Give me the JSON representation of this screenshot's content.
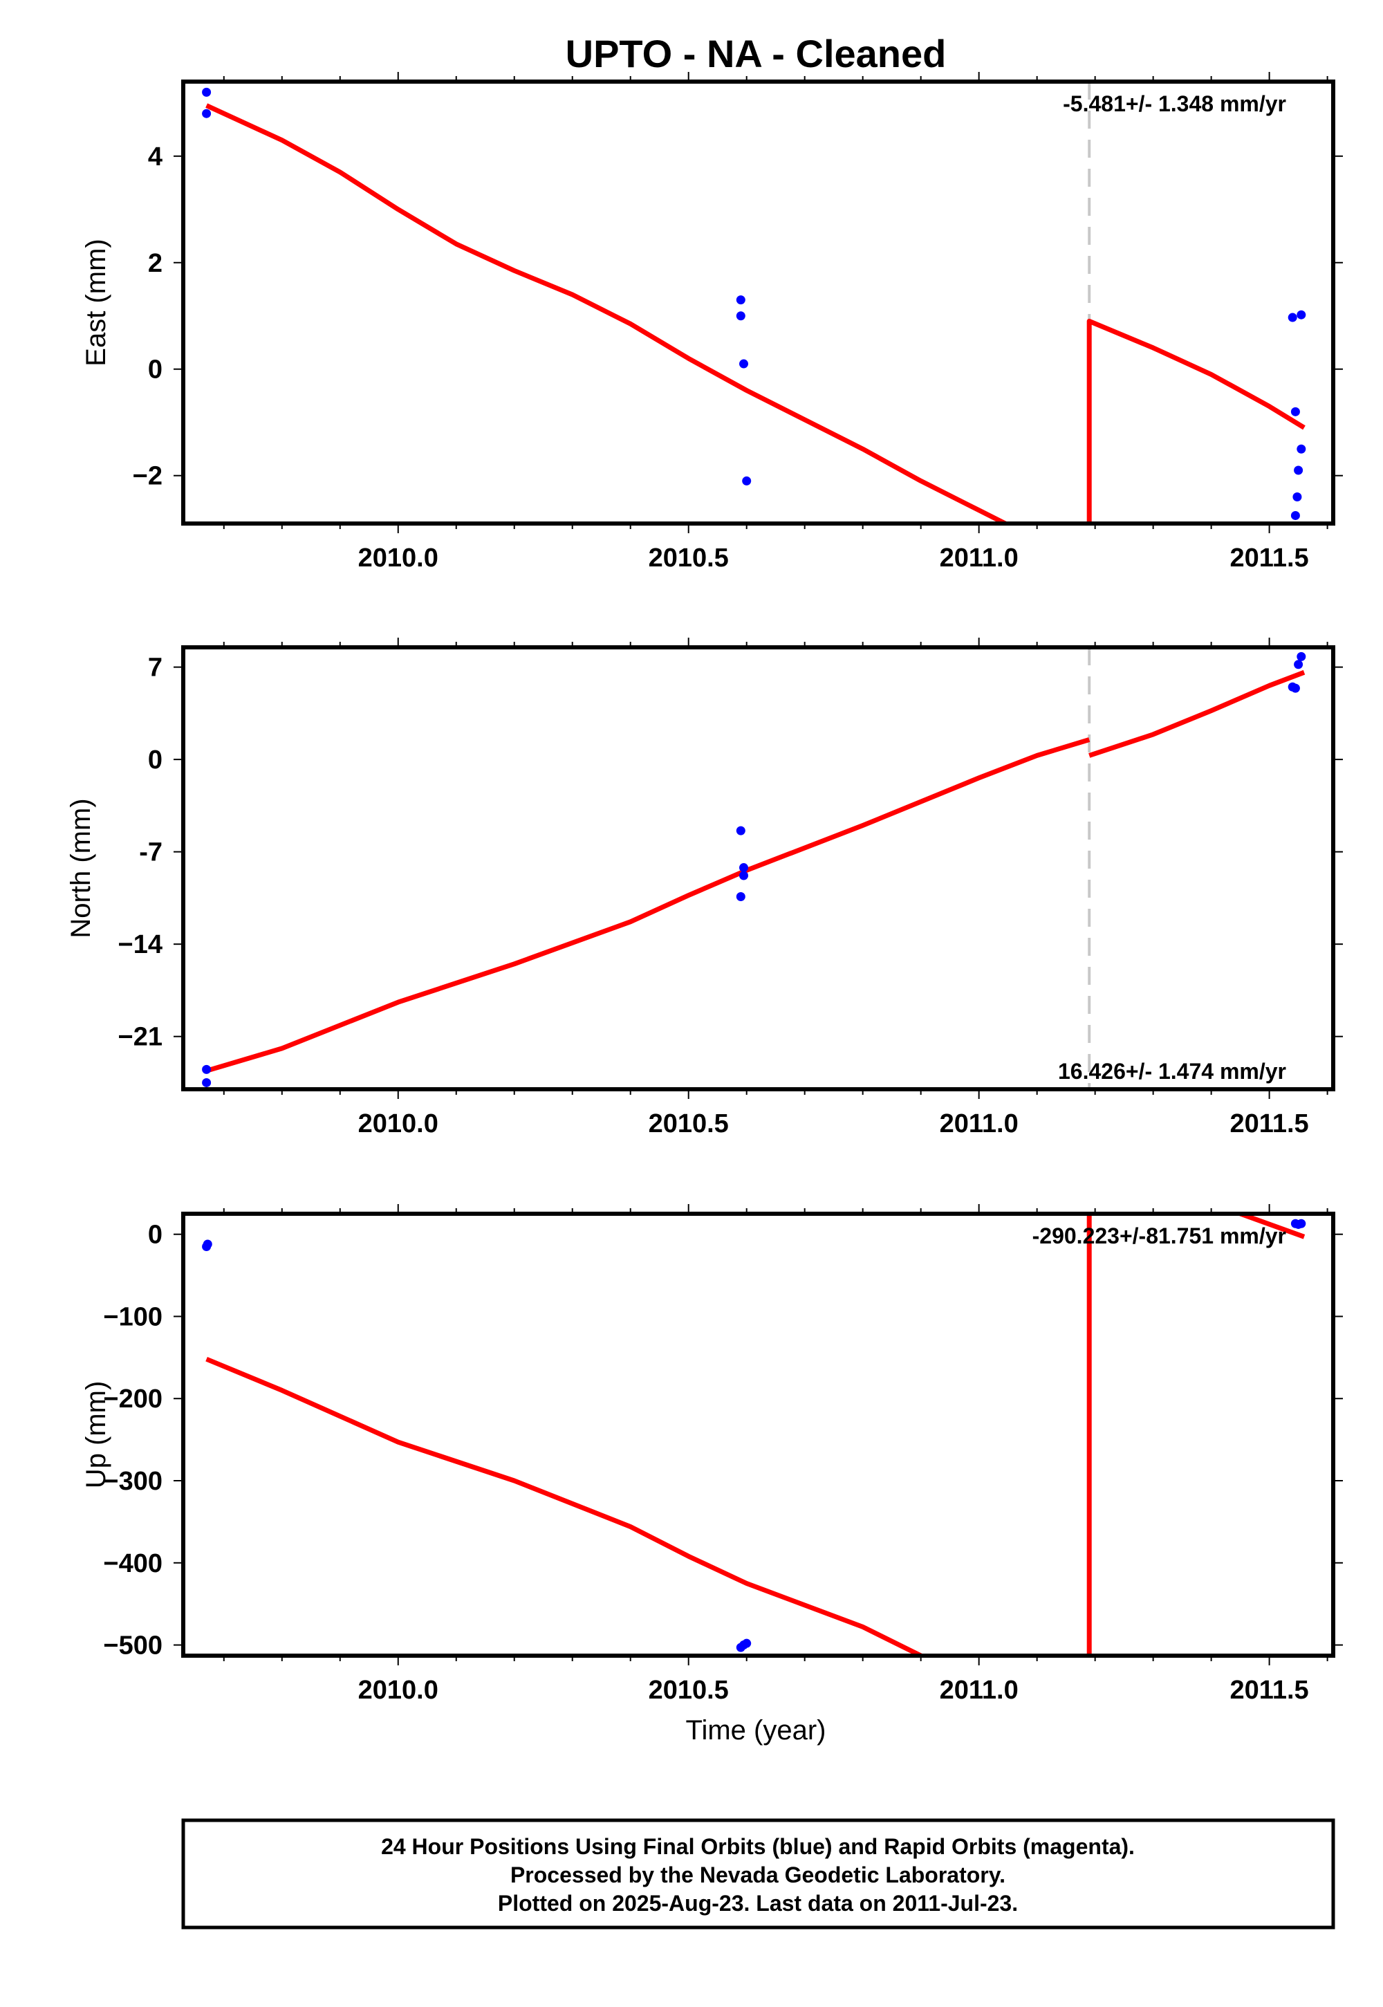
{
  "title": "UPTO  - NA - Cleaned",
  "colors": {
    "fit": "#ff0000",
    "final_points": "#0000ff",
    "break_line": "#c8c8c8",
    "frame": "#000000"
  },
  "xlabel": "Time (year)",
  "caption": {
    "line1": "24 Hour Positions Using Final Orbits (blue) and Rapid Orbits (magenta).",
    "line2": "Processed by the Nevada Geodetic Laboratory.",
    "line3": "Plotted on 2025-Aug-23. Last data on 2011-Jul-23."
  },
  "chart_data": [
    {
      "type": "scatter",
      "panel": "east",
      "ylabel": "East (mm)",
      "rate_text": "-5.481+/- 1.348 mm/yr",
      "rate_position": "top-right",
      "xlim": [
        2009.63,
        2011.61
      ],
      "ylim": [
        -2.9,
        5.4
      ],
      "xticks": [
        2010.0,
        2010.5,
        2011.0,
        2011.5
      ],
      "xticklabels": [
        "2010.0",
        "2010.5",
        "2011.0",
        "2011.5"
      ],
      "yticks": [
        4,
        2,
        0,
        -2
      ],
      "yticklabels": [
        "4",
        "2",
        "0",
        "−2"
      ],
      "break_x": 2011.19,
      "points": [
        [
          2009.67,
          5.2
        ],
        [
          2009.67,
          4.8
        ],
        [
          2010.59,
          1.3
        ],
        [
          2010.59,
          1.0
        ],
        [
          2010.595,
          0.1
        ],
        [
          2010.6,
          -2.1
        ],
        [
          2011.54,
          0.97
        ],
        [
          2011.555,
          1.02
        ],
        [
          2011.545,
          -0.8
        ],
        [
          2011.555,
          -1.5
        ],
        [
          2011.55,
          -1.9
        ],
        [
          2011.548,
          -2.4
        ],
        [
          2011.545,
          -2.75
        ]
      ],
      "fit": [
        [
          [
            2009.67,
            4.95
          ],
          [
            2009.8,
            4.3
          ],
          [
            2009.9,
            3.7
          ],
          [
            2010.0,
            3.0
          ],
          [
            2010.1,
            2.35
          ],
          [
            2010.2,
            1.85
          ],
          [
            2010.3,
            1.4
          ],
          [
            2010.4,
            0.85
          ],
          [
            2010.5,
            0.2
          ],
          [
            2010.6,
            -0.4
          ],
          [
            2010.7,
            -0.95
          ],
          [
            2010.8,
            -1.5
          ],
          [
            2010.9,
            -2.1
          ],
          [
            2011.0,
            -2.65
          ],
          [
            2011.1,
            -3.2
          ]
        ],
        [
          [
            2011.19,
            -3.2
          ],
          [
            2011.19,
            0.9
          ],
          [
            2011.3,
            0.4
          ],
          [
            2011.4,
            -0.1
          ],
          [
            2011.5,
            -0.7
          ],
          [
            2011.56,
            -1.1
          ]
        ]
      ]
    },
    {
      "type": "scatter",
      "panel": "north",
      "ylabel": "North (mm)",
      "rate_text": "16.426+/- 1.474 mm/yr",
      "rate_position": "bottom-right",
      "xlim": [
        2009.63,
        2011.61
      ],
      "ylim": [
        -25,
        8.5
      ],
      "xticks": [
        2010.0,
        2010.5,
        2011.0,
        2011.5
      ],
      "xticklabels": [
        "2010.0",
        "2010.5",
        "2011.0",
        "2011.5"
      ],
      "yticks": [
        7,
        0,
        -7,
        -14,
        -21
      ],
      "yticklabels": [
        "7",
        "0",
        "-7",
        "−14",
        "−21"
      ],
      "break_x": 2011.19,
      "points": [
        [
          2009.67,
          -23.5
        ],
        [
          2009.67,
          -24.5
        ],
        [
          2010.59,
          -5.4
        ],
        [
          2010.595,
          -8.2
        ],
        [
          2010.595,
          -8.8
        ],
        [
          2010.59,
          -10.4
        ],
        [
          2011.54,
          5.5
        ],
        [
          2011.545,
          5.4
        ],
        [
          2011.55,
          7.2
        ],
        [
          2011.555,
          7.8
        ]
      ],
      "fit": [
        [
          [
            2009.67,
            -23.6
          ],
          [
            2009.8,
            -21.9
          ],
          [
            2010.0,
            -18.4
          ],
          [
            2010.2,
            -15.5
          ],
          [
            2010.4,
            -12.3
          ],
          [
            2010.5,
            -10.3
          ],
          [
            2010.6,
            -8.4
          ],
          [
            2010.8,
            -5.0
          ],
          [
            2011.0,
            -1.4
          ],
          [
            2011.1,
            0.3
          ],
          [
            2011.19,
            1.5
          ]
        ],
        [
          [
            2011.19,
            0.3
          ],
          [
            2011.3,
            1.9
          ],
          [
            2011.4,
            3.7
          ],
          [
            2011.5,
            5.6
          ],
          [
            2011.56,
            6.6
          ]
        ]
      ]
    },
    {
      "type": "scatter",
      "panel": "up",
      "ylabel": "Up (mm)",
      "rate_text": "-290.223+/-81.751 mm/yr",
      "rate_position": "top-right",
      "xlim": [
        2009.63,
        2011.61
      ],
      "ylim": [
        -513,
        25
      ],
      "xticks": [
        2010.0,
        2010.5,
        2011.0,
        2011.5
      ],
      "xticklabels": [
        "2010.0",
        "2010.5",
        "2011.0",
        "2011.5"
      ],
      "yticks": [
        0,
        -100,
        -200,
        -300,
        -400,
        -500
      ],
      "yticklabels": [
        "0",
        "−100",
        "−200",
        "−300",
        "−400",
        "−500"
      ],
      "break_x": 2011.19,
      "points": [
        [
          2009.67,
          -15
        ],
        [
          2009.672,
          -12
        ],
        [
          2010.59,
          -503
        ],
        [
          2010.595,
          -500
        ],
        [
          2010.6,
          -498
        ],
        [
          2011.545,
          13
        ],
        [
          2011.55,
          12
        ],
        [
          2011.555,
          13
        ]
      ],
      "fit": [
        [
          [
            2009.67,
            -152
          ],
          [
            2009.8,
            -190
          ],
          [
            2010.0,
            -253
          ],
          [
            2010.2,
            -300
          ],
          [
            2010.4,
            -356
          ],
          [
            2010.5,
            -392
          ],
          [
            2010.6,
            -425
          ],
          [
            2010.8,
            -478
          ],
          [
            2010.92,
            -520
          ]
        ],
        [
          [
            2011.19,
            -520
          ],
          [
            2011.19,
            30
          ]
        ],
        [
          [
            2011.45,
            25
          ],
          [
            2011.56,
            -3
          ]
        ]
      ]
    }
  ]
}
